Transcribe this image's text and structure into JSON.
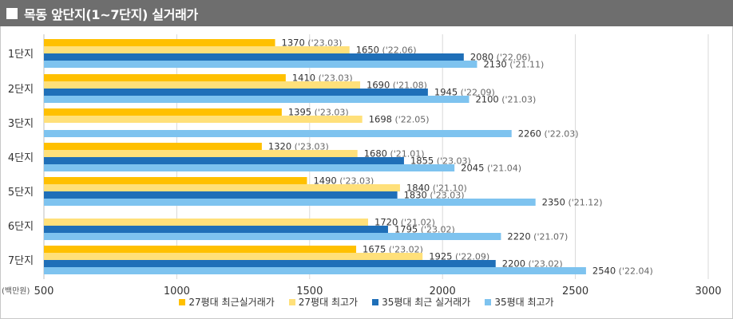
{
  "title": "목동 앞단지(1~7단지) 실거래가",
  "chart_data": {
    "type": "bar",
    "orientation": "horizontal",
    "categories": [
      "1단지",
      "2단지",
      "3단지",
      "4단지",
      "5단지",
      "6단지",
      "7단지"
    ],
    "xlim": [
      500,
      3000
    ],
    "xticks": [
      500,
      1000,
      1500,
      2000,
      2500,
      3000
    ],
    "unit_label": "(백만원)",
    "grid": true,
    "legend_position": "bottom",
    "series": [
      {
        "name": "27평대 최근실거래가",
        "color": "#FFC000",
        "values": [
          1370,
          1410,
          1395,
          1320,
          1490,
          null,
          1675
        ],
        "dates": [
          "'23.03",
          "'23.03",
          "'23.03",
          "'23.03",
          "'23.03",
          null,
          "'23.02"
        ]
      },
      {
        "name": "27평대 최고가",
        "color": "#FFE07A",
        "values": [
          1650,
          1690,
          1698,
          1680,
          1840,
          1720,
          1925
        ],
        "dates": [
          "'22.06",
          "'21.08",
          "'22.05",
          "'21.01",
          "'21.10",
          "'21.02",
          "'22.09"
        ]
      },
      {
        "name": "35평대 최근 실거래가",
        "color": "#1F6FB8",
        "values": [
          2080,
          1945,
          null,
          1855,
          1830,
          1795,
          2200
        ],
        "dates": [
          "'22.06",
          "'22.09",
          null,
          "'23.03",
          "'23.03",
          "'23.02",
          "'23.02"
        ]
      },
      {
        "name": "35평대 최고가",
        "color": "#7EC3EF",
        "values": [
          2130,
          2100,
          2260,
          2045,
          2350,
          2220,
          2540
        ],
        "dates": [
          "'21.11",
          "'21.03",
          "'22.03",
          "'21.04",
          "'21.12",
          "'21.07",
          "'22.04"
        ]
      }
    ]
  }
}
